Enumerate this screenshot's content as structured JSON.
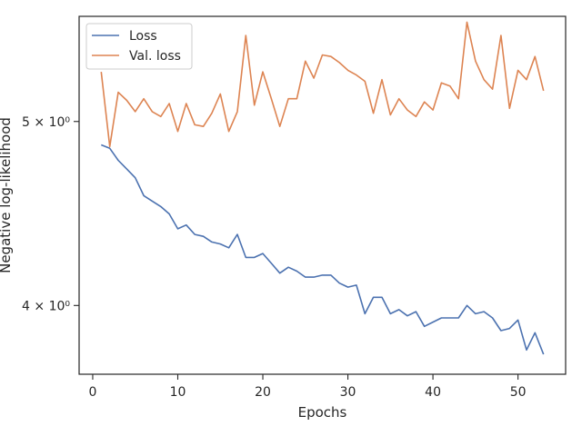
{
  "chart_data": {
    "type": "line",
    "title": "",
    "xlabel": "Epochs",
    "ylabel": "Negative log-likelihood",
    "yscale": "log",
    "xlim": [
      -1.6,
      55.6
    ],
    "ylim": [
      3.68,
      5.68
    ],
    "grid": false,
    "legend": "top-left",
    "x_ticks": [
      0,
      10,
      20,
      30,
      40,
      50
    ],
    "y_ticks": [
      {
        "value": 4.0,
        "label": "4 × 10⁰"
      },
      {
        "value": 5.0,
        "label": "5 × 10⁰"
      }
    ],
    "x": [
      1,
      2,
      3,
      4,
      5,
      6,
      7,
      8,
      9,
      10,
      11,
      12,
      13,
      14,
      15,
      16,
      17,
      18,
      19,
      20,
      21,
      22,
      23,
      24,
      25,
      26,
      27,
      28,
      29,
      30,
      31,
      32,
      33,
      34,
      35,
      36,
      37,
      38,
      39,
      40,
      41,
      42,
      43,
      44,
      45,
      46,
      47,
      48,
      49,
      50,
      51,
      52,
      53
    ],
    "series": [
      {
        "name": "Loss",
        "color": "#4c72b0",
        "values": [
          4.86,
          4.84,
          4.77,
          4.72,
          4.67,
          4.57,
          4.54,
          4.51,
          4.47,
          4.39,
          4.41,
          4.36,
          4.35,
          4.32,
          4.31,
          4.29,
          4.36,
          4.24,
          4.24,
          4.26,
          4.21,
          4.16,
          4.19,
          4.17,
          4.14,
          4.14,
          4.15,
          4.15,
          4.11,
          4.09,
          4.1,
          3.96,
          4.04,
          4.04,
          3.96,
          3.98,
          3.95,
          3.97,
          3.9,
          3.92,
          3.94,
          3.94,
          3.94,
          4.0,
          3.96,
          3.97,
          3.94,
          3.88,
          3.89,
          3.93,
          3.79,
          3.87,
          3.77
        ]
      },
      {
        "name": "Val. loss",
        "color": "#dd8452",
        "values": [
          5.31,
          4.85,
          5.18,
          5.13,
          5.06,
          5.14,
          5.06,
          5.03,
          5.11,
          4.94,
          5.11,
          4.98,
          4.97,
          5.05,
          5.17,
          4.94,
          5.06,
          5.55,
          5.1,
          5.31,
          5.14,
          4.97,
          5.14,
          5.14,
          5.38,
          5.27,
          5.42,
          5.41,
          5.37,
          5.32,
          5.29,
          5.25,
          5.05,
          5.26,
          5.04,
          5.14,
          5.07,
          5.03,
          5.12,
          5.07,
          5.24,
          5.22,
          5.14,
          5.64,
          5.38,
          5.26,
          5.2,
          5.55,
          5.08,
          5.32,
          5.26,
          5.41,
          5.19
        ]
      }
    ]
  }
}
